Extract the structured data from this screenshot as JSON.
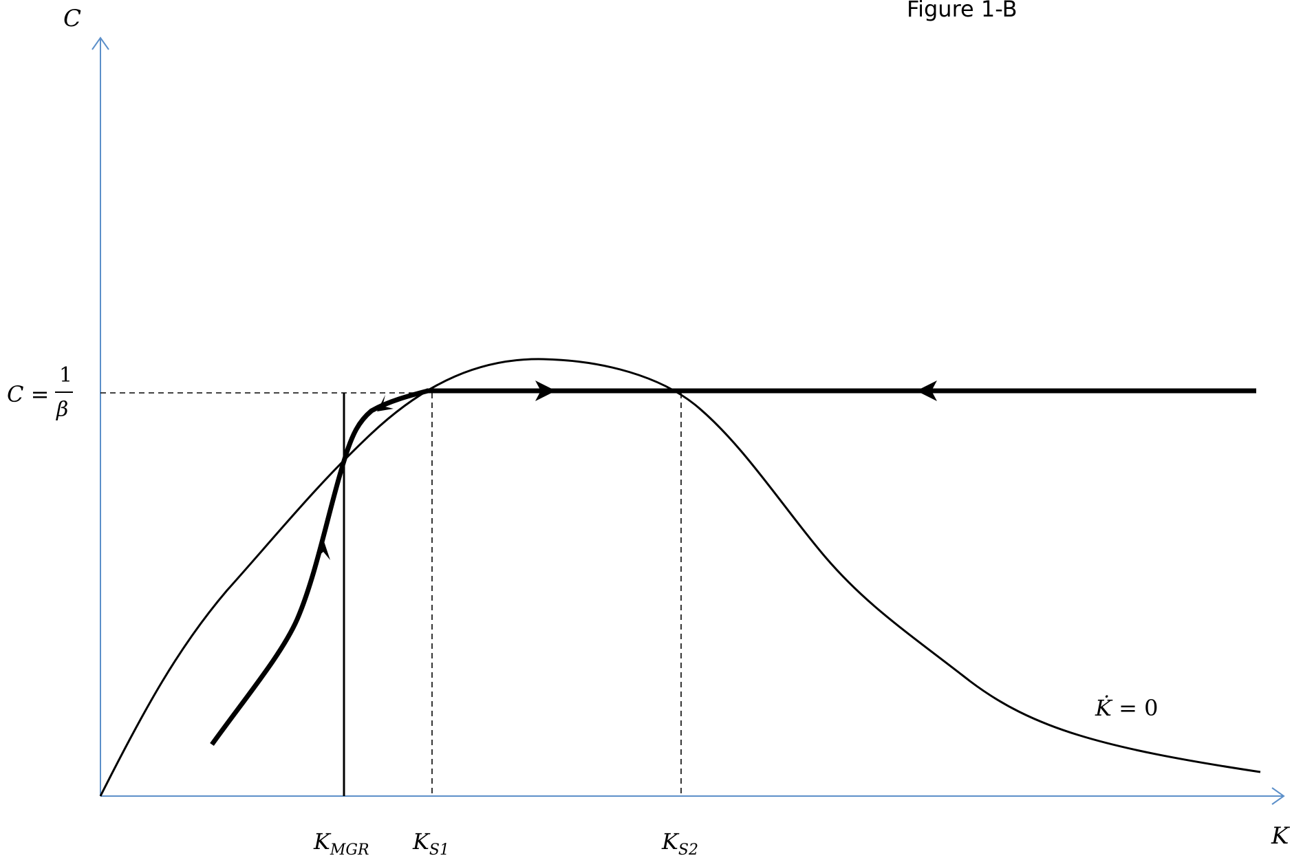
{
  "title": "Figure 1-B",
  "axes": {
    "y_label": "C",
    "x_label": "K",
    "color": "#5b8fc9"
  },
  "level_label": {
    "lhs": "C =",
    "numerator": "1",
    "denominator": "β"
  },
  "x_markers": [
    {
      "main": "K",
      "sub": "MGR"
    },
    {
      "main": "K",
      "sub": "S1"
    },
    {
      "main": "K",
      "sub": "S2"
    }
  ],
  "curve_label": {
    "main": "K̇",
    "rest": "= 0"
  },
  "colors": {
    "curves": "#000000",
    "axes": "#5b8fc9"
  }
}
